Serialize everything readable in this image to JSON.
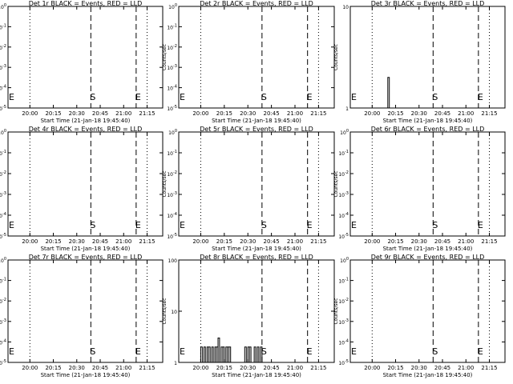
{
  "page": {
    "background": "#ffffff",
    "foreground": "#000000"
  },
  "x_tick_labels": [
    "20:00",
    "20:15",
    "20:30",
    "20:45",
    "21:00",
    "21:15"
  ],
  "x_axis_label": "Start Time (21-Jan-18 19:45:40)",
  "y_axis_label": "Counts/sec",
  "markers": {
    "start": "S",
    "end": "E"
  },
  "chart_data": [
    {
      "type": "line",
      "title": "Det 1r BLACK = Events, RED = LLD",
      "xlabel": "Start Time (21-Jan-18 19:45:40)",
      "ylabel": "Counts/sec",
      "y_scale": "log",
      "y_ticks": [
        "10^0",
        "10^-1",
        "10^-2",
        "10^-3",
        "10^-4",
        "10^-5"
      ],
      "x_ticks": [
        "20:00",
        "20:15",
        "20:30",
        "20:45",
        "21:00",
        "21:15"
      ],
      "event_lines": [
        {
          "label": "S",
          "time": "20:39",
          "style": "dashed"
        },
        {
          "label": "E",
          "time": "21:08",
          "style": "dashed"
        }
      ],
      "series": []
    },
    {
      "type": "line",
      "title": "Det 2r BLACK = Events, RED = LLD",
      "xlabel": "Start Time (21-Jan-18 19:45:40)",
      "ylabel": "Counts/sec",
      "y_scale": "log",
      "y_ticks": [
        "10^0",
        "10^-1",
        "10^-2",
        "10^-3",
        "10^-4",
        "10^-5"
      ],
      "x_ticks": [
        "20:00",
        "20:15",
        "20:30",
        "20:45",
        "21:00",
        "21:15"
      ],
      "event_lines": [
        {
          "label": "S",
          "time": "20:39",
          "style": "dashed"
        },
        {
          "label": "E",
          "time": "21:08",
          "style": "dashed"
        }
      ],
      "series": []
    },
    {
      "type": "line",
      "title": "Det 3r BLACK = Events, RED = LLD",
      "xlabel": "Start Time (21-Jan-18 19:45:40)",
      "ylabel": "Counts/sec",
      "y_scale": "log",
      "y_ticks": [
        "1",
        "10"
      ],
      "x_ticks": [
        "20:00",
        "20:15",
        "20:30",
        "20:45",
        "21:00",
        "21:15"
      ],
      "event_lines": [
        {
          "label": "S",
          "time": "20:39",
          "style": "dashed"
        },
        {
          "label": "E",
          "time": "21:08",
          "style": "dashed"
        }
      ],
      "series": [
        {
          "x": [
            "20:08",
            "20:09",
            "20:10",
            "20:11"
          ],
          "y": [
            1,
            1,
            2,
            1
          ]
        }
      ]
    },
    {
      "type": "line",
      "title": "Det 4r BLACK = Events, RED = LLD",
      "xlabel": "Start Time (21-Jan-18 19:45:40)",
      "ylabel": "Counts/sec",
      "y_scale": "log",
      "y_ticks": [
        "10^0",
        "10^-1",
        "10^-2",
        "10^-3",
        "10^-4",
        "10^-5"
      ],
      "x_ticks": [
        "20:00",
        "20:15",
        "20:30",
        "20:45",
        "21:00",
        "21:15"
      ],
      "event_lines": [
        {
          "label": "S",
          "time": "20:39",
          "style": "dashed"
        },
        {
          "label": "E",
          "time": "21:08",
          "style": "dashed"
        }
      ],
      "series": []
    },
    {
      "type": "line",
      "title": "Det 5r BLACK = Events, RED = LLD",
      "xlabel": "Start Time (21-Jan-18 19:45:40)",
      "ylabel": "Counts/sec",
      "y_scale": "log",
      "y_ticks": [
        "10^0",
        "10^-1",
        "10^-2",
        "10^-3",
        "10^-4",
        "10^-5"
      ],
      "x_ticks": [
        "20:00",
        "20:15",
        "20:30",
        "20:45",
        "21:00",
        "21:15"
      ],
      "event_lines": [
        {
          "label": "S",
          "time": "20:39",
          "style": "dashed"
        },
        {
          "label": "E",
          "time": "21:08",
          "style": "dashed"
        }
      ],
      "series": []
    },
    {
      "type": "line",
      "title": "Det 6r BLACK = Events, RED = LLD",
      "xlabel": "Start Time (21-Jan-18 19:45:40)",
      "ylabel": "Counts/sec",
      "y_scale": "log",
      "y_ticks": [
        "10^0",
        "10^-1",
        "10^-2",
        "10^-3",
        "10^-4",
        "10^-5"
      ],
      "x_ticks": [
        "20:00",
        "20:15",
        "20:30",
        "20:45",
        "21:00",
        "21:15"
      ],
      "event_lines": [
        {
          "label": "S",
          "time": "20:39",
          "style": "dashed"
        },
        {
          "label": "E",
          "time": "21:08",
          "style": "dashed"
        }
      ],
      "series": []
    },
    {
      "type": "line",
      "title": "Det 7r BLACK = Events, RED = LLD",
      "xlabel": "Start Time (21-Jan-18 19:45:40)",
      "ylabel": "Counts/sec",
      "y_scale": "log",
      "y_ticks": [
        "10^0",
        "10^-1",
        "10^-2",
        "10^-3",
        "10^-4",
        "10^-5"
      ],
      "x_ticks": [
        "20:00",
        "20:15",
        "20:30",
        "20:45",
        "21:00",
        "21:15"
      ],
      "event_lines": [
        {
          "label": "S",
          "time": "20:39",
          "style": "dashed"
        },
        {
          "label": "E",
          "time": "21:08",
          "style": "dashed"
        }
      ],
      "series": []
    },
    {
      "type": "line",
      "title": "Det 8r BLACK = Events, RED = LLD",
      "xlabel": "Start Time (21-Jan-18 19:45:40)",
      "ylabel": "Counts/sec",
      "y_scale": "log",
      "y_ticks": [
        "1",
        "10",
        "100"
      ],
      "x_ticks": [
        "20:00",
        "20:15",
        "20:30",
        "20:45",
        "21:00",
        "21:15"
      ],
      "event_lines": [
        {
          "label": "S",
          "time": "20:39",
          "style": "dashed"
        },
        {
          "label": "E",
          "time": "21:08",
          "style": "dashed"
        }
      ],
      "series": [
        {
          "x": [
            "19:59",
            "20:00",
            "20:01",
            "20:02",
            "20:03",
            "20:04",
            "20:05",
            "20:06",
            "20:07",
            "20:08",
            "20:09",
            "20:10",
            "20:11",
            "20:12",
            "20:13",
            "20:14",
            "20:15",
            "20:16",
            "20:17",
            "20:18",
            "20:19",
            "20:20",
            "20:21",
            "20:22",
            "20:23",
            "20:24",
            "20:25",
            "20:26",
            "20:27",
            "20:28",
            "20:29",
            "20:30",
            "20:31",
            "20:32",
            "20:33",
            "20:34",
            "20:35",
            "20:36",
            "20:37",
            "20:38",
            "20:39",
            "20:40"
          ],
          "y": [
            1,
            2,
            1,
            2,
            1,
            2,
            2,
            1,
            2,
            1,
            2,
            2,
            3,
            1,
            2,
            2,
            1,
            2,
            2,
            2,
            1,
            1,
            1,
            1,
            1,
            1,
            1,
            1,
            1,
            2,
            1,
            2,
            2,
            1,
            1,
            2,
            1,
            2,
            1,
            2,
            1,
            1
          ]
        }
      ]
    },
    {
      "type": "line",
      "title": "Det 9r BLACK = Events, RED = LLD",
      "xlabel": "Start Time (21-Jan-18 19:45:40)",
      "ylabel": "Counts/sec",
      "y_scale": "log",
      "y_ticks": [
        "10^0",
        "10^-1",
        "10^-2",
        "10^-3",
        "10^-4",
        "10^-5"
      ],
      "x_ticks": [
        "20:00",
        "20:15",
        "20:30",
        "20:45",
        "21:00",
        "21:15"
      ],
      "event_lines": [
        {
          "label": "S",
          "time": "20:39",
          "style": "dashed"
        },
        {
          "label": "E",
          "time": "21:08",
          "style": "dashed"
        }
      ],
      "series": []
    }
  ]
}
